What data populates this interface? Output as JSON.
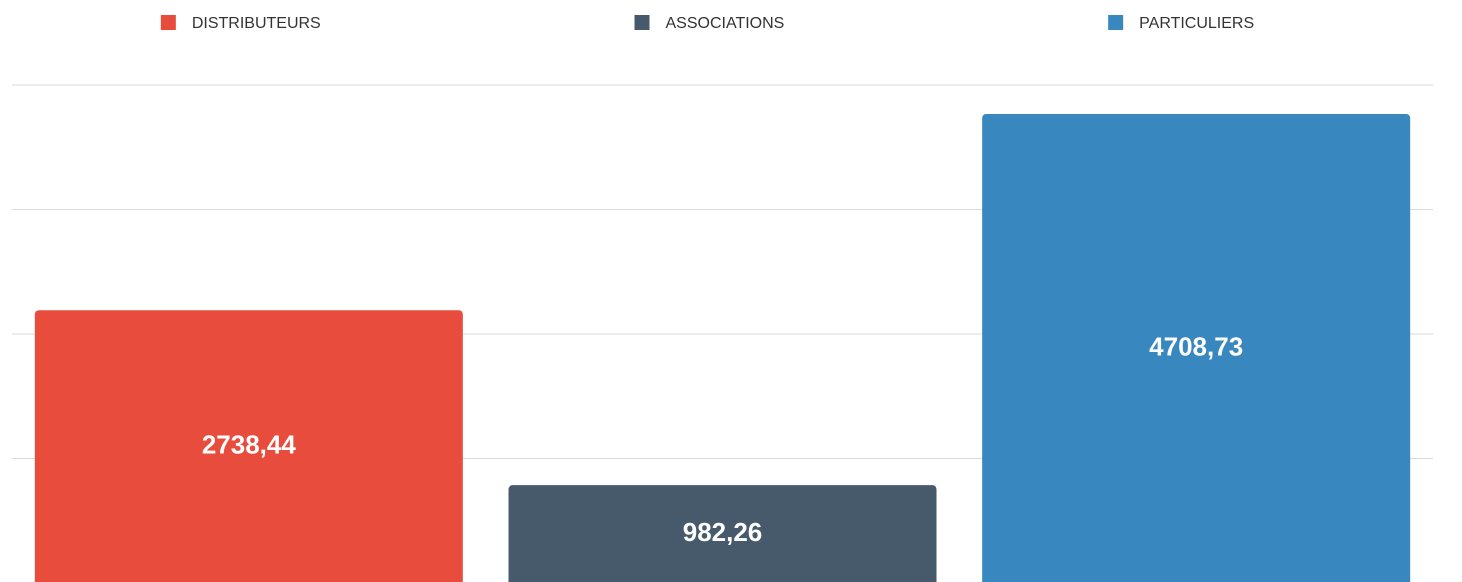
{
  "chart_data": {
    "type": "bar",
    "series": [
      {
        "name": "DISTRIBUTEURS",
        "color": "#e74c3c",
        "values": [
          2738.44
        ],
        "value_labels": [
          "2738,44"
        ]
      },
      {
        "name": "ASSOCIATIONS",
        "color": "#475a6b",
        "values": [
          982.26
        ],
        "value_labels": [
          "982,26"
        ]
      },
      {
        "name": "PARTICULIERS",
        "color": "#3887be",
        "values": [
          4708.73
        ],
        "value_labels": [
          "4708,73"
        ]
      }
    ],
    "ylim": [
      0,
      5000
    ],
    "yticks": [
      0,
      1250,
      2500,
      3750,
      5000
    ],
    "grid": true,
    "legend": "top"
  }
}
